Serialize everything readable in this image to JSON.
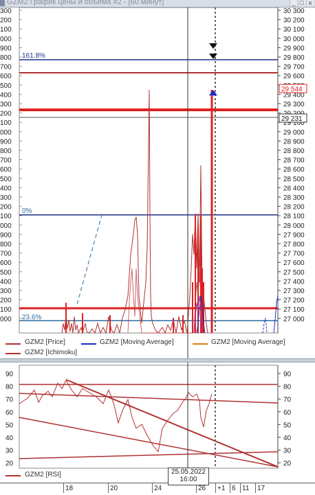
{
  "window": {
    "title": "GZM2 График цены и объема #2 - [60 минут]",
    "buttons": {
      "minimize": "_",
      "maximize": "□",
      "close": "x"
    }
  },
  "price_chart": {
    "y_ticks": [
      "30 300",
      "30 200",
      "30 100",
      "30 000",
      "29 900",
      "29 800",
      "29 700",
      "29 600",
      "29 500",
      "29 400",
      "29 300",
      "29 200",
      "29 100",
      "29 000",
      "28 900",
      "28 800",
      "28 700",
      "28 600",
      "28 500",
      "28 400",
      "28 300",
      "28 200",
      "28 100",
      "28 000",
      "27 900",
      "27 800",
      "27 700",
      "27 600",
      "27 500",
      "27 400",
      "27 300",
      "27 200",
      "27 100",
      "27 000"
    ],
    "left_ticks": [
      "300",
      "200",
      "100",
      "000",
      "900",
      "800",
      "700",
      "600",
      "500",
      "400",
      "300",
      "200",
      "100",
      "000",
      "900",
      "800",
      "700",
      "600",
      "500",
      "400",
      "300",
      "200",
      "100",
      "000",
      "900",
      "800",
      "700",
      "600",
      "500",
      "400",
      "300",
      "200",
      "100",
      "000"
    ],
    "fib_levels": [
      {
        "label": "161.8%",
        "color": "#1a2d8c"
      },
      {
        "label": "0%",
        "color": "#2a6aa0"
      },
      {
        "label": "23.6%",
        "color": "#2a6aa0"
      }
    ],
    "price_labels": {
      "current": "29 544",
      "crosshair": "29 231"
    },
    "legend": [
      {
        "label": "GZM2 [Price]",
        "color": "#b03030"
      },
      {
        "label": "GZM2 [Moving Average]",
        "color": "#1a2dc8"
      },
      {
        "label": "GZM2 [Moving Average]",
        "color": "#e07a10"
      },
      {
        "label": "GZM2 [Ichimoku]",
        "color": "#b03030"
      }
    ]
  },
  "rsi_chart": {
    "y_ticks": [
      "90",
      "80",
      "70",
      "60",
      "50",
      "40",
      "30",
      "20"
    ],
    "legend": [
      {
        "label": "GZM2 [RSI]",
        "color": "#b03030"
      }
    ]
  },
  "x_axis": {
    "ticks": [
      "18",
      "20",
      "24",
      "26",
      "+1",
      "6",
      "11",
      "17"
    ],
    "crosshair_date": "25.05.2022",
    "crosshair_time": "16:00"
  },
  "colors": {
    "price": "#b03030",
    "level_red": "#e02020",
    "fib_blue": "#1a2d8c",
    "fib_light": "#2a6aa0",
    "ma_blue": "#1a2dc8",
    "ma_orange": "#e07a10"
  }
}
